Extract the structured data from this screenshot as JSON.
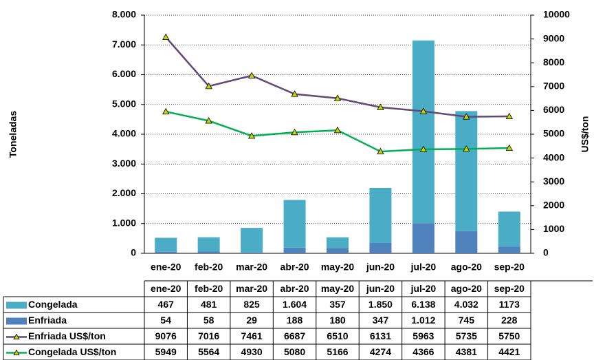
{
  "chart_data": {
    "type": "bar-line",
    "y_label": "Toneladas",
    "y2_label": "US$/ton",
    "categories": [
      "ene-20",
      "feb-20",
      "mar-20",
      "abr-20",
      "may-20",
      "jun-20",
      "jul-20",
      "ago-20",
      "sep-20"
    ],
    "series": [
      {
        "name": "Congelada",
        "type": "bar",
        "color": "#4bacc6",
        "values": [
          467,
          481,
          825,
          1604,
          357,
          1850,
          6138,
          4032,
          1173
        ],
        "value_labels": [
          "467",
          "481",
          "825",
          "1.604",
          "357",
          "1.850",
          "6.138",
          "4.032",
          "1173"
        ]
      },
      {
        "name": "Enfriada",
        "type": "bar",
        "color": "#4f81bd",
        "values": [
          54,
          58,
          29,
          188,
          180,
          347,
          1012,
          745,
          228
        ],
        "value_labels": [
          "54",
          "58",
          "29",
          "188",
          "180",
          "347",
          "1.012",
          "745",
          "228"
        ]
      },
      {
        "name": "Enfriada US$/ton",
        "type": "line",
        "axis": "y2",
        "color": "#5f497a",
        "values": [
          9076,
          7016,
          7461,
          6687,
          6510,
          6131,
          5963,
          5735,
          5750
        ]
      },
      {
        "name": "Congelada US$/ton",
        "type": "line",
        "axis": "y2",
        "color": "#00b050",
        "values": [
          5949,
          5564,
          4930,
          5080,
          5166,
          4274,
          4366,
          4381,
          4421
        ]
      }
    ],
    "ylim": [
      0,
      8000
    ],
    "yticks": [
      0,
      {
        "value": 1000,
        "label": "1.000"
      },
      {
        "value": 2000,
        "label": "2.000"
      },
      {
        "value": 3000,
        "label": "3.000"
      },
      {
        "value": 4000,
        "label": "4.000"
      },
      {
        "value": 5000,
        "label": "5.000"
      },
      {
        "value": 6000,
        "label": "6.000"
      },
      {
        "value": 7000,
        "label": "7.000"
      },
      {
        "value": 8000,
        "label": "8.000"
      }
    ],
    "y2lim": [
      0,
      10000
    ],
    "y2ticks": [
      0,
      1000,
      2000,
      3000,
      4000,
      5000,
      6000,
      7000,
      8000,
      9000,
      10000
    ],
    "grid": true,
    "marker_color": "#c4d600"
  }
}
